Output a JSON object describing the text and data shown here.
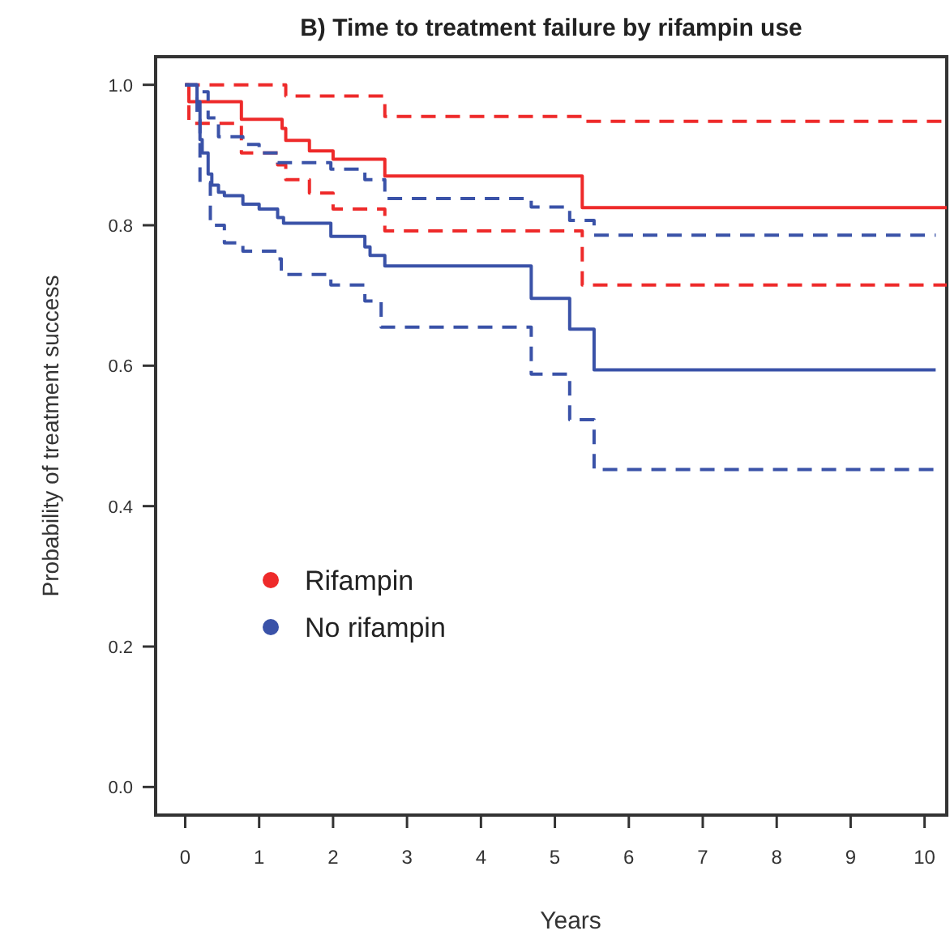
{
  "chart_data": {
    "type": "step",
    "title": "B) Time to treatment failure by rifampin use",
    "xlabel": "Years",
    "ylabel": "Probability of treatment success",
    "xlim": [
      -0.4,
      10.3
    ],
    "ylim": [
      -0.04,
      1.04
    ],
    "xticks": [
      0,
      1,
      2,
      3,
      4,
      5,
      6,
      7,
      8,
      9,
      10
    ],
    "yticks": [
      {
        "value": 0,
        "label": "0.0"
      },
      {
        "value": 0.2,
        "label": "0.2"
      },
      {
        "value": 0.4,
        "label": "0.4"
      },
      {
        "value": 0.6,
        "label": "0.6"
      },
      {
        "value": 0.8,
        "label": "0.8"
      },
      {
        "value": 1,
        "label": "1.0"
      }
    ],
    "grid": false,
    "legend": "left",
    "marker": "none",
    "series": [
      {
        "name": "Rifampin",
        "color": "#ee2a2a",
        "line_style": "solid",
        "x": [
          0,
          0.05,
          0.76,
          1.31,
          1.36,
          1.68,
          2.0,
          2.7,
          5.37,
          10.3
        ],
        "values": [
          1.0,
          0.976,
          0.951,
          0.938,
          0.921,
          0.906,
          0.894,
          0.87,
          0.825,
          0.825
        ]
      },
      {
        "color": "#ee2a2a",
        "line_style": "dashed",
        "x": [
          0,
          1.36,
          2.7,
          5.37,
          10.3
        ],
        "values": [
          1.0,
          0.984,
          0.955,
          0.948,
          0.948
        ]
      },
      {
        "color": "#ee2a2a",
        "line_style": "dashed",
        "x": [
          0,
          0.05,
          0.76,
          1.25,
          1.36,
          1.68,
          2.0,
          2.7,
          5.37,
          10.3
        ],
        "values": [
          1.0,
          0.945,
          0.903,
          0.886,
          0.865,
          0.846,
          0.823,
          0.792,
          0.715,
          0.715
        ]
      },
      {
        "name": "No rifampin",
        "color": "#3a52a8",
        "line_style": "solid",
        "x": [
          0,
          0.16,
          0.2,
          0.23,
          0.31,
          0.36,
          0.45,
          0.53,
          0.78,
          1.0,
          1.25,
          1.33,
          1.97,
          2.43,
          2.5,
          2.7,
          4.68,
          5.2,
          5.53,
          10.15
        ],
        "values": [
          1.0,
          0.976,
          0.922,
          0.903,
          0.873,
          0.857,
          0.847,
          0.842,
          0.83,
          0.823,
          0.811,
          0.803,
          0.784,
          0.769,
          0.757,
          0.742,
          0.696,
          0.652,
          0.594,
          0.594
        ]
      },
      {
        "color": "#3a52a8",
        "line_style": "dashed",
        "x": [
          0,
          0.16,
          0.31,
          0.45,
          0.78,
          1.0,
          1.25,
          1.97,
          2.43,
          2.7,
          4.68,
          5.2,
          5.53,
          10.15
        ],
        "values": [
          1.0,
          0.99,
          0.953,
          0.926,
          0.915,
          0.903,
          0.889,
          0.88,
          0.865,
          0.838,
          0.826,
          0.807,
          0.786,
          0.786
        ]
      },
      {
        "color": "#3a52a8",
        "line_style": "dashed",
        "x": [
          0,
          0.16,
          0.2,
          0.34,
          0.53,
          0.78,
          1.25,
          1.3,
          1.97,
          2.43,
          2.65,
          4.68,
          5.2,
          5.53,
          10.15
        ],
        "values": [
          1.0,
          0.95,
          0.861,
          0.8,
          0.775,
          0.763,
          0.752,
          0.73,
          0.715,
          0.692,
          0.655,
          0.588,
          0.523,
          0.452,
          0.452
        ]
      }
    ]
  }
}
